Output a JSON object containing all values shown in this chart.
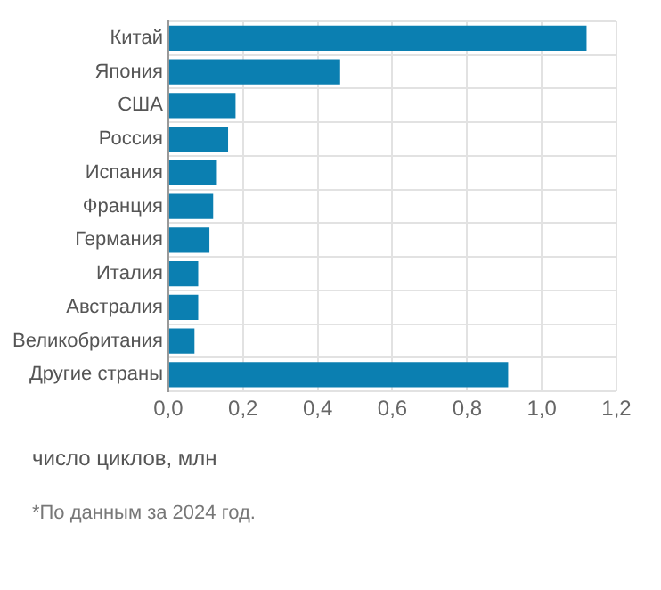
{
  "chart_data": {
    "type": "bar",
    "orientation": "horizontal",
    "categories": [
      "Китай",
      "Япония",
      "США",
      "Россия",
      "Испания",
      "Франция",
      "Германия",
      "Италия",
      "Австралия",
      "Великобритания",
      "Другие страны"
    ],
    "values": [
      1.12,
      0.46,
      0.18,
      0.16,
      0.13,
      0.12,
      0.11,
      0.08,
      0.08,
      0.07,
      0.91
    ],
    "color": "#0b7fb1",
    "xlim": [
      0,
      1.2
    ],
    "xticks": [
      {
        "value": 0,
        "label": "0,0"
      },
      {
        "value": 0.2,
        "label": "0,2"
      },
      {
        "value": 0.4,
        "label": "0,4"
      },
      {
        "value": 0.6,
        "label": "0,6"
      },
      {
        "value": 0.8,
        "label": "0,8"
      },
      {
        "value": 1,
        "label": "1,0"
      },
      {
        "value": 1.2,
        "label": "1,2"
      }
    ],
    "xlabel": "число циклов, млн",
    "annotations": [
      "*По данным за 2024 год."
    ],
    "grid": true
  }
}
